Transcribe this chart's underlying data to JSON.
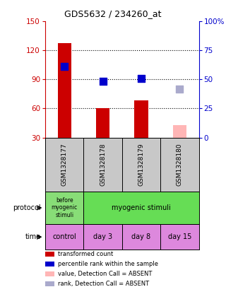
{
  "title": "GDS5632 / 234260_at",
  "samples": [
    "GSM1328177",
    "GSM1328178",
    "GSM1328179",
    "GSM1328180"
  ],
  "bar_values": [
    127,
    60,
    68,
    43
  ],
  "bar_colors": [
    "#cc0000",
    "#cc0000",
    "#cc0000",
    "#ffb6b6"
  ],
  "dot_values": [
    103,
    88,
    91,
    80
  ],
  "dot_colors": [
    "#0000cc",
    "#0000cc",
    "#0000cc",
    "#aaaacc"
  ],
  "ylim_left": [
    30,
    150
  ],
  "ylim_right": [
    0,
    100
  ],
  "yticks_left": [
    30,
    60,
    90,
    120,
    150
  ],
  "yticks_right": [
    0,
    25,
    50,
    75,
    100
  ],
  "ytick_labels_right": [
    "0",
    "25",
    "50",
    "75",
    "100%"
  ],
  "hlines": [
    60,
    90,
    120
  ],
  "protocol_labels": [
    "before\nmyogenic\nstimuli",
    "myogenic stimuli"
  ],
  "protocol_colors": [
    "#88dd77",
    "#66dd55"
  ],
  "time_labels": [
    "control",
    "day 3",
    "day 8",
    "day 15"
  ],
  "time_color": "#dd88dd",
  "legend_items": [
    {
      "label": "transformed count",
      "color": "#cc0000"
    },
    {
      "label": "percentile rank within the sample",
      "color": "#0000cc"
    },
    {
      "label": "value, Detection Call = ABSENT",
      "color": "#ffb6b6"
    },
    {
      "label": "rank, Detection Call = ABSENT",
      "color": "#aaaacc"
    }
  ],
  "bar_width": 0.35,
  "dot_size": 55,
  "left_axis_color": "#cc0000",
  "right_axis_color": "#0000cc",
  "background_sample": "#c8c8c8"
}
